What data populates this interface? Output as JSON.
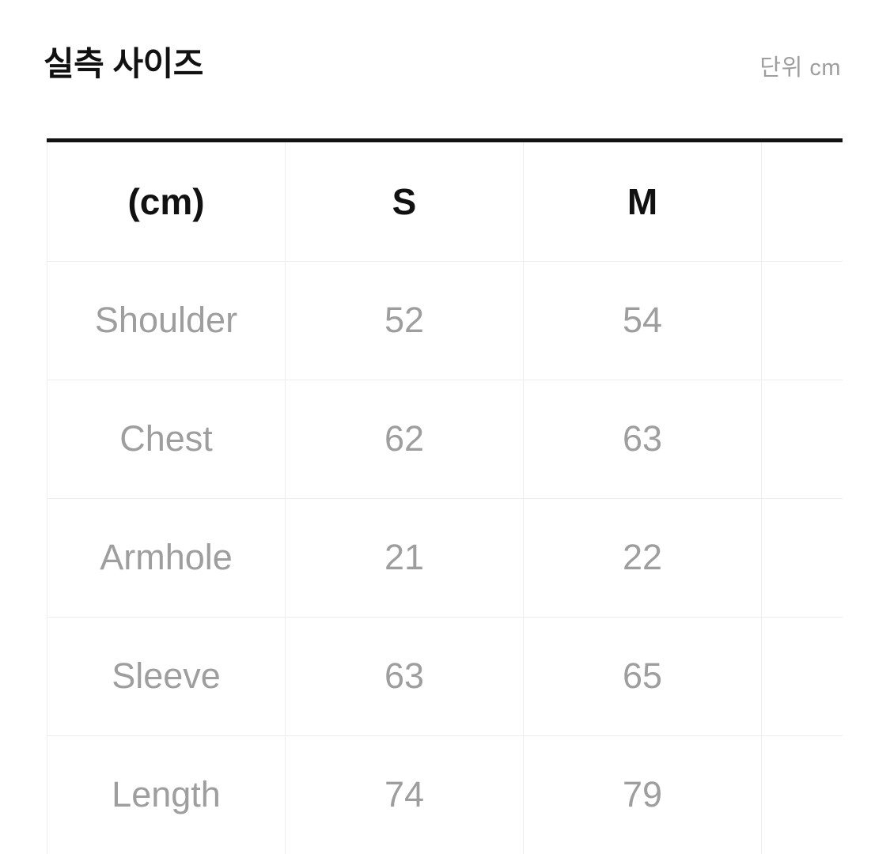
{
  "header": {
    "title": "실측 사이즈",
    "unit_label": "단위 cm"
  },
  "size_table": {
    "columns": [
      "(cm)",
      "S",
      "M",
      ""
    ],
    "rows": [
      {
        "label": "Shoulder",
        "values": [
          "52",
          "54",
          ""
        ]
      },
      {
        "label": "Chest",
        "values": [
          "62",
          "63",
          ""
        ]
      },
      {
        "label": "Armhole",
        "values": [
          "21",
          "22",
          ""
        ]
      },
      {
        "label": "Sleeve",
        "values": [
          "63",
          "65",
          ""
        ]
      },
      {
        "label": "Length",
        "values": [
          "74",
          "79",
          ""
        ]
      }
    ]
  },
  "colors": {
    "text_primary": "#111111",
    "text_muted": "#9e9e9e",
    "table_border": "#ededed",
    "top_rule": "#121212",
    "background": "#ffffff"
  }
}
